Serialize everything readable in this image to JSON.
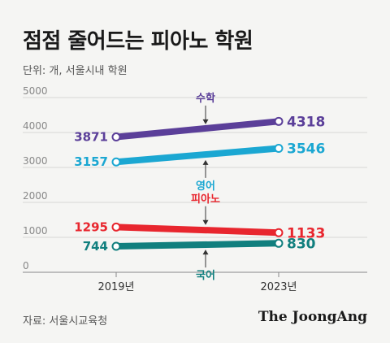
{
  "header": {
    "title": "점점 줄어드는 피아노 학원",
    "unit": "단위: 개, 서울시내 학원"
  },
  "footer": {
    "source": "자료: 서울시교육청",
    "brand": "The JoongAng"
  },
  "chart_data": {
    "type": "line",
    "title": "점점 줄어드는 피아노 학원",
    "x": [
      "2019년",
      "2023년"
    ],
    "ylim": [
      0,
      5000
    ],
    "yticks": [
      0,
      1000,
      2000,
      3000,
      4000,
      5000
    ],
    "grid": true,
    "series": [
      {
        "name": "수학",
        "values": [
          3871,
          4318
        ],
        "color": "#5b3f99",
        "label_side": "above"
      },
      {
        "name": "영어",
        "values": [
          3157,
          3546
        ],
        "color": "#1ba7d2",
        "label_side": "below"
      },
      {
        "name": "피아노",
        "values": [
          1295,
          1133
        ],
        "color": "#e8262e",
        "label_side": "above"
      },
      {
        "name": "국어",
        "values": [
          744,
          830
        ],
        "color": "#117f7e",
        "label_side": "below"
      }
    ]
  }
}
